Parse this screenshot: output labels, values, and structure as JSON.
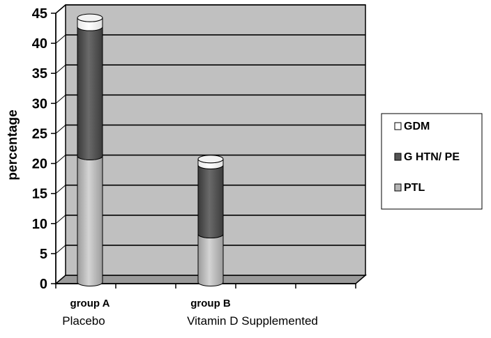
{
  "chart_data": {
    "type": "bar",
    "stacked": true,
    "categories": [
      "group A",
      "group B"
    ],
    "category_sublabels": [
      "Placebo",
      "Vitamin D Supplemented"
    ],
    "ylabel": "percentage",
    "xlabel": "",
    "ylim": [
      0,
      45
    ],
    "yticks": [
      "0",
      "5",
      "10",
      "15",
      "20",
      "25",
      "30",
      "35",
      "40",
      "45"
    ],
    "grid": true,
    "legend_position": "right",
    "series": [
      {
        "name": "PTL",
        "values": [
          21,
          8
        ],
        "color": "#b5b5b5"
      },
      {
        "name": "G HTN/ PE",
        "values": [
          21.5,
          11.5
        ],
        "color": "#555555"
      },
      {
        "name": "GDM",
        "values": [
          1.5,
          1
        ],
        "color": "#ffffff"
      }
    ],
    "legend_order": [
      "GDM",
      "G HTN/ PE",
      "PTL"
    ],
    "plot_background": "#c0c0c0"
  }
}
